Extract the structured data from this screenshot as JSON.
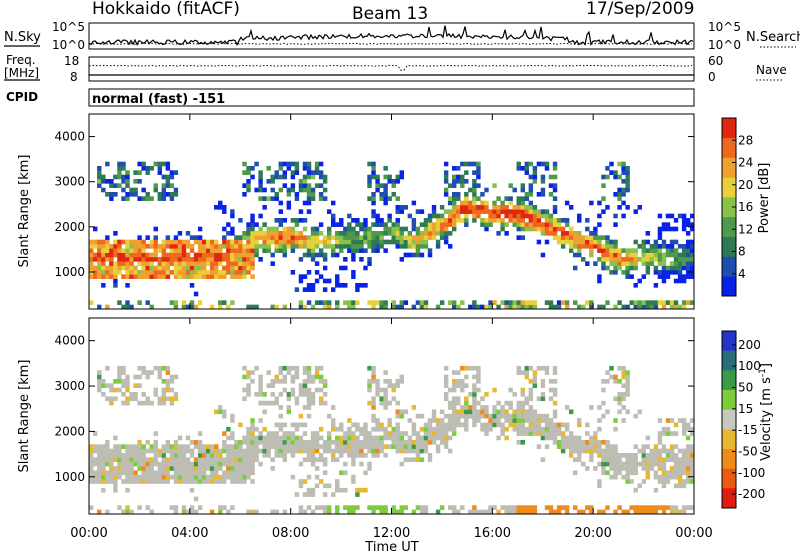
{
  "header": {
    "title": "Hokkaido (fitACF)",
    "beam": "Beam 13",
    "date": "17/Sep/2009"
  },
  "top_panels": {
    "nsky": {
      "label": "N.Sky",
      "yticks": [
        "10^5",
        "10^0"
      ]
    },
    "nsearch": {
      "label": "N.Search",
      "yticks": [
        "10^5",
        "10^0"
      ]
    },
    "freq": {
      "label_line1": "Freq.",
      "label_line2": "[MHz]",
      "yticks": [
        "18",
        "8"
      ]
    },
    "nave": {
      "label": "Nave",
      "yticks": [
        "60",
        "0"
      ]
    },
    "cpid": {
      "label": "CPID",
      "value": "normal (fast) -151"
    }
  },
  "colors": {
    "power_scale": [
      "#0a22e8",
      "#1f4fae",
      "#2d7a55",
      "#4f9a4a",
      "#89c24b",
      "#e8d03a",
      "#f0a030",
      "#ee6820",
      "#e02810"
    ],
    "velocity_scale": [
      "#2434c8",
      "#2a6e7a",
      "#3a9a45",
      "#7ccc3c",
      "#c8c8c0",
      "#e8b830",
      "#f08a18",
      "#ec5a10",
      "#e01c10"
    ],
    "ground_scatter": "#bdbdb4"
  },
  "chart_data": [
    {
      "type": "heatmap",
      "title": "Power",
      "xlabel": "Time UT",
      "ylabel": "Slant Range [km]",
      "x_ticks": [
        "00:00",
        "04:00",
        "08:00",
        "12:00",
        "16:00",
        "20:00",
        "00:00"
      ],
      "y_ticks": [
        "1000",
        "2000",
        "3000",
        "4000"
      ],
      "ylim": [
        180,
        4500
      ],
      "colorbar": {
        "label": "Power [dB]",
        "ticks": [
          "4",
          "8",
          "12",
          "16",
          "20",
          "24",
          "28"
        ],
        "range": [
          0,
          32
        ]
      },
      "band_center_km": [
        [
          0,
          1300
        ],
        [
          3,
          1320
        ],
        [
          5.5,
          1400
        ],
        [
          6.5,
          1700
        ],
        [
          8,
          1800
        ],
        [
          9,
          1650
        ],
        [
          10,
          1700
        ],
        [
          11,
          1750
        ],
        [
          12,
          1900
        ],
        [
          13,
          1700
        ],
        [
          14,
          2050
        ],
        [
          15,
          2450
        ],
        [
          16,
          2300
        ],
        [
          17,
          2300
        ],
        [
          18,
          2050
        ],
        [
          19,
          1800
        ],
        [
          20,
          1550
        ],
        [
          21,
          1300
        ],
        [
          24,
          1300
        ]
      ],
      "band_peak_power_db": [
        [
          0,
          28
        ],
        [
          5,
          30
        ],
        [
          6.5,
          22
        ],
        [
          8,
          28
        ],
        [
          10,
          14
        ],
        [
          12,
          14
        ],
        [
          14,
          26
        ],
        [
          15,
          30
        ],
        [
          17,
          30
        ],
        [
          19,
          28
        ],
        [
          21,
          26
        ],
        [
          24,
          8
        ]
      ]
    },
    {
      "type": "heatmap",
      "title": "Velocity",
      "xlabel": "Time UT",
      "ylabel": "Slant Range [km]",
      "x_ticks": [
        "00:00",
        "04:00",
        "08:00",
        "12:00",
        "16:00",
        "20:00",
        "00:00"
      ],
      "y_ticks": [
        "1000",
        "2000",
        "3000",
        "4000"
      ],
      "ylim": [
        180,
        4500
      ],
      "colorbar": {
        "label": "Velocity [m s^-1]",
        "ticks": [
          "200",
          "100",
          "50",
          "15",
          "-15",
          "-50",
          "-100",
          "-200"
        ],
        "range": [
          -250,
          250
        ]
      },
      "dominant_velocity": "ground scatter (grey, |v| < 15 m s^-1)",
      "near_range_velocity_m_s": [
        [
          10,
          50
        ],
        [
          13,
          40
        ],
        [
          18,
          -60
        ],
        [
          22,
          -40
        ]
      ]
    }
  ]
}
